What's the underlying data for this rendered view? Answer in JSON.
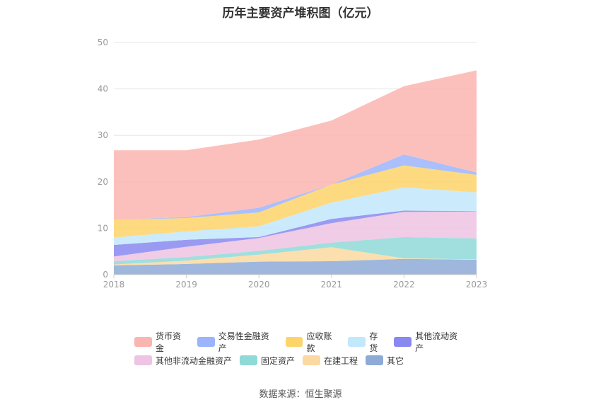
{
  "title": "历年主要资产堆积图（亿元）",
  "source": "数据来源：恒生聚源",
  "chart_data": {
    "type": "area",
    "stacked": true,
    "categories": [
      "2018",
      "2019",
      "2020",
      "2021",
      "2022",
      "2023"
    ],
    "ylim": [
      0,
      50
    ],
    "yticks": [
      0,
      10,
      20,
      30,
      40,
      50
    ],
    "grid": true,
    "legend_position": "bottom",
    "series": [
      {
        "name": "其它",
        "color": "#8eaad6",
        "values": [
          2.0,
          2.3,
          2.8,
          2.9,
          3.4,
          3.2
        ]
      },
      {
        "name": "在建工程",
        "color": "#fcd9a0",
        "values": [
          0.2,
          0.7,
          1.5,
          3.0,
          0.1,
          0.1
        ]
      },
      {
        "name": "固定资产",
        "color": "#8fd9d8",
        "values": [
          0.7,
          0.8,
          0.8,
          1.0,
          4.6,
          4.5
        ]
      },
      {
        "name": "其他非流动金融资产",
        "color": "#eec3e3",
        "values": [
          1.0,
          2.2,
          2.8,
          4.2,
          5.4,
          5.8
        ]
      },
      {
        "name": "其他流动资产",
        "color": "#8888f0",
        "values": [
          2.5,
          1.5,
          0.2,
          0.9,
          0.3,
          0.1
        ]
      },
      {
        "name": "存货",
        "color": "#c2e8fb",
        "values": [
          1.6,
          1.8,
          2.3,
          3.5,
          5.0,
          4.0
        ]
      },
      {
        "name": "应收账款",
        "color": "#fdd46a",
        "values": [
          3.8,
          2.9,
          3.0,
          3.9,
          4.7,
          3.8
        ]
      },
      {
        "name": "交易性金融资产",
        "color": "#9bb4fb",
        "values": [
          0.0,
          0.2,
          1.0,
          0.0,
          2.4,
          0.5
        ]
      },
      {
        "name": "货币资金",
        "color": "#fbb5b0",
        "values": [
          15.0,
          14.4,
          14.7,
          13.8,
          14.7,
          22.0
        ]
      }
    ],
    "legend_order": [
      [
        "货币资金",
        "交易性金融资产",
        "应收账款",
        "存货",
        "其他流动资产"
      ],
      [
        "其他非流动金融资产",
        "固定资产",
        "在建工程",
        "其它"
      ]
    ]
  }
}
